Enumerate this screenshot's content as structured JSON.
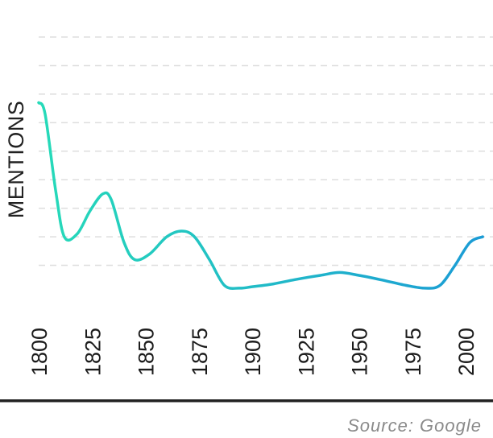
{
  "chart_data": {
    "type": "line",
    "title": "",
    "xlabel": "",
    "ylabel": "MENTIONS",
    "source": "Source: Google",
    "x_ticks": [
      "1800",
      "1825",
      "1850",
      "1875",
      "1900",
      "1925",
      "1950",
      "1975",
      "2000"
    ],
    "x_tick_colors": [
      "#1c1c1c",
      "#1c1c1c",
      "#1c1c1c",
      "#1c1c1c",
      "#1c1c1c",
      "#1c1c1c",
      "#1c1c1c",
      "#1c1c1c",
      "#a6a6a6"
    ],
    "xlim": [
      1800,
      2008
    ],
    "ylim": [
      0,
      9
    ],
    "y_gridlines": [
      1,
      2,
      3,
      4,
      5,
      6,
      7,
      8,
      9
    ],
    "grid": "horizontal dashed",
    "gradient_colors": [
      "#27e0b6",
      "#1b9ad6"
    ],
    "series": [
      {
        "x": [
          1800,
          1803,
          1808,
          1812,
          1818,
          1824,
          1830,
          1834,
          1840,
          1845,
          1852,
          1860,
          1867,
          1873,
          1880,
          1887,
          1894,
          1900,
          1910,
          1920,
          1932,
          1941,
          1950,
          1960,
          1972,
          1981,
          1988,
          1995,
          2002,
          2008
        ],
        "y": [
          6.7,
          6.3,
          3.6,
          2.0,
          2.1,
          2.9,
          3.5,
          3.3,
          1.8,
          1.2,
          1.4,
          2.0,
          2.2,
          2.0,
          1.2,
          0.3,
          0.2,
          0.25,
          0.35,
          0.5,
          0.65,
          0.75,
          0.65,
          0.5,
          0.3,
          0.2,
          0.3,
          1.0,
          1.8,
          2.0
        ]
      }
    ]
  }
}
